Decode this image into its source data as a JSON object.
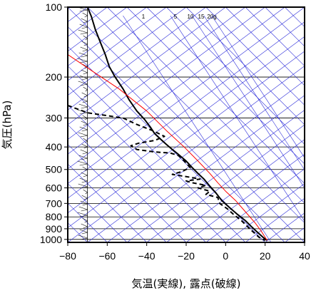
{
  "chart_data": {
    "type": "line",
    "xlabel": "気温(実線), 露点(破線)",
    "ylabel": "気圧(hPa)",
    "xlim": [
      -80,
      40
    ],
    "ylim": [
      1030,
      100
    ],
    "y_scale": "log",
    "x_ticks": [
      "−80",
      "−60",
      "−40",
      "−20",
      "0",
      "20",
      "40"
    ],
    "y_ticks": [
      "100",
      "200",
      "300",
      "400",
      "500",
      "600",
      "700",
      "800",
      "900",
      "1000"
    ],
    "mixing_ratio_labels": [
      "1",
      "5",
      "10",
      "15",
      "20g"
    ],
    "colors": {
      "temperature": "#000000",
      "dewpoint": "#000000",
      "parcel": "#ff0000",
      "isopleths": "#2b2bd9",
      "grid": "#000000"
    },
    "series": [
      {
        "key": "temperature",
        "style": "solid",
        "points": [
          [
            -70,
            100
          ],
          [
            -68,
            110
          ],
          [
            -66,
            125
          ],
          [
            -63,
            145
          ],
          [
            -61,
            160
          ],
          [
            -59,
            180
          ],
          [
            -56,
            200
          ],
          [
            -52,
            225
          ],
          [
            -49,
            250
          ],
          [
            -45,
            280
          ],
          [
            -41,
            305
          ],
          [
            -38,
            330
          ],
          [
            -36,
            350
          ],
          [
            -33,
            370
          ],
          [
            -30,
            390
          ],
          [
            -27,
            410
          ],
          [
            -24,
            430
          ],
          [
            -20,
            460
          ],
          [
            -17,
            490
          ],
          [
            -14,
            520
          ],
          [
            -11,
            550
          ],
          [
            -8,
            590
          ],
          [
            -5,
            630
          ],
          [
            -2,
            680
          ],
          [
            2,
            730
          ],
          [
            6,
            780
          ],
          [
            10,
            830
          ],
          [
            13,
            880
          ],
          [
            16,
            930
          ],
          [
            19,
            980
          ],
          [
            21,
            1010
          ]
        ]
      },
      {
        "key": "dewpoint",
        "style": "dashed",
        "points": [
          [
            -80,
            265
          ],
          [
            -70,
            285
          ],
          [
            -52,
            300
          ],
          [
            -45,
            320
          ],
          [
            -37,
            340
          ],
          [
            -31,
            360
          ],
          [
            -36,
            375
          ],
          [
            -44,
            385
          ],
          [
            -48,
            395
          ],
          [
            -45,
            410
          ],
          [
            -36,
            420
          ],
          [
            -28,
            425
          ],
          [
            -24,
            435
          ],
          [
            -22,
            450
          ],
          [
            -20,
            470
          ],
          [
            -18,
            490
          ],
          [
            -22,
            510
          ],
          [
            -27,
            525
          ],
          [
            -24,
            530
          ],
          [
            -18,
            540
          ],
          [
            -13,
            550
          ],
          [
            -20,
            560
          ],
          [
            -17,
            570
          ],
          [
            -10,
            585
          ],
          [
            -14,
            600
          ],
          [
            -8,
            620
          ],
          [
            -10,
            640
          ],
          [
            -4,
            660
          ],
          [
            -3,
            700
          ],
          [
            1,
            740
          ],
          [
            4,
            780
          ],
          [
            8,
            830
          ],
          [
            11,
            880
          ],
          [
            14,
            930
          ],
          [
            17,
            980
          ],
          [
            20,
            1010
          ]
        ]
      },
      {
        "key": "parcel",
        "style": "solid",
        "points": [
          [
            -80,
            160
          ],
          [
            -67,
            190
          ],
          [
            -54,
            225
          ],
          [
            -40,
            280
          ],
          [
            -30,
            340
          ],
          [
            -21,
            400
          ],
          [
            -14,
            460
          ],
          [
            -8,
            520
          ],
          [
            -4,
            570
          ],
          [
            0,
            620
          ],
          [
            5,
            680
          ],
          [
            10,
            760
          ],
          [
            15,
            850
          ],
          [
            18,
            920
          ],
          [
            21,
            1010
          ]
        ]
      }
    ]
  }
}
